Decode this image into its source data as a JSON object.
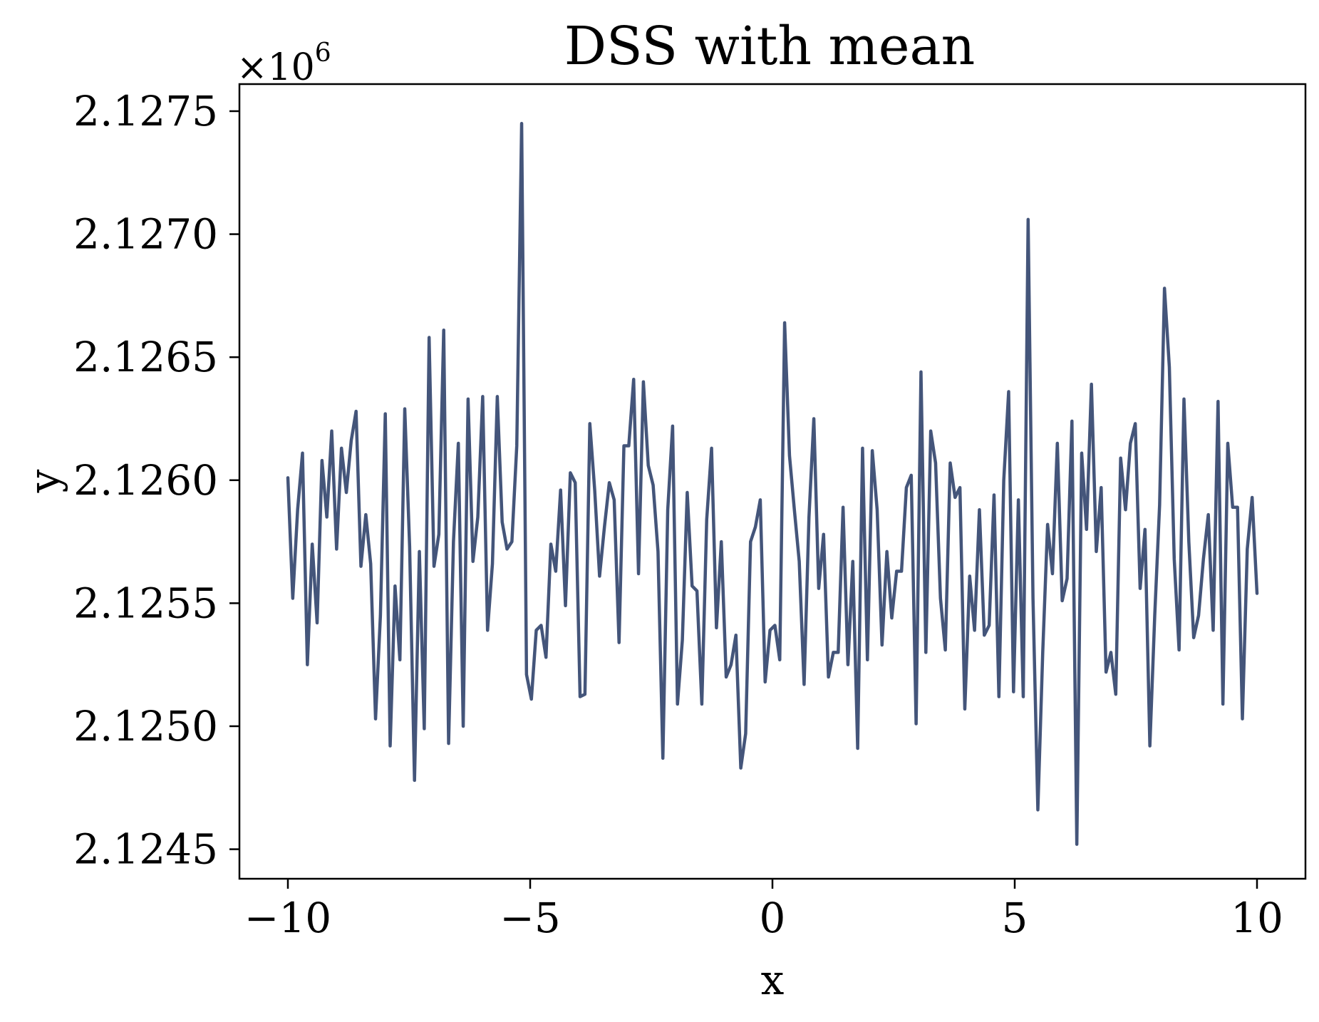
{
  "chart_data": {
    "type": "line",
    "title": "DSS with mean",
    "xlabel": "x",
    "ylabel": "y",
    "y_offset_text": "×10",
    "y_offset_exponent": "6",
    "xlim": [
      -11,
      11
    ],
    "ylim": [
      2.12438,
      2.12761
    ],
    "xticks": [
      -10,
      -5,
      0,
      5,
      10
    ],
    "xtick_labels": [
      "−10",
      "−5",
      "0",
      "5",
      "10"
    ],
    "yticks": [
      2.1245,
      2.125,
      2.1255,
      2.126,
      2.1265,
      2.127,
      2.1275
    ],
    "ytick_labels": [
      "2.1245",
      "2.1250",
      "2.1255",
      "2.1260",
      "2.1265",
      "2.1270",
      "2.1275"
    ],
    "grid": false,
    "series": [
      {
        "color": "#44557a",
        "x_range": [
          -10,
          10
        ],
        "values": [
          2.12601,
          2.12552,
          2.12588,
          2.12611,
          2.12525,
          2.12574,
          2.12542,
          2.12608,
          2.12585,
          2.1262,
          2.12572,
          2.12613,
          2.12595,
          2.12616,
          2.12628,
          2.12565,
          2.12586,
          2.12566,
          2.12503,
          2.12545,
          2.12627,
          2.12492,
          2.12557,
          2.12527,
          2.12629,
          2.12573,
          2.12478,
          2.12571,
          2.12499,
          2.12658,
          2.12565,
          2.12578,
          2.12661,
          2.12493,
          2.12575,
          2.12615,
          2.125,
          2.12633,
          2.12567,
          2.12585,
          2.12634,
          2.12539,
          2.12566,
          2.12634,
          2.12583,
          2.12572,
          2.12575,
          2.12614,
          2.12745,
          2.12521,
          2.12511,
          2.12539,
          2.12541,
          2.12528,
          2.12574,
          2.12563,
          2.12596,
          2.12549,
          2.12603,
          2.12599,
          2.12512,
          2.12513,
          2.12623,
          2.12596,
          2.12561,
          2.12581,
          2.12599,
          2.12592,
          2.12534,
          2.12614,
          2.12614,
          2.12641,
          2.12562,
          2.1264,
          2.12606,
          2.12598,
          2.12571,
          2.12487,
          2.12588,
          2.12622,
          2.12509,
          2.12535,
          2.12595,
          2.12557,
          2.12555,
          2.12509,
          2.12584,
          2.12613,
          2.1254,
          2.12575,
          2.1252,
          2.12525,
          2.12537,
          2.12483,
          2.12497,
          2.12575,
          2.12581,
          2.12592,
          2.12518,
          2.12539,
          2.12541,
          2.12527,
          2.12664,
          2.1261,
          2.12588,
          2.12567,
          2.12517,
          2.12585,
          2.12625,
          2.12556,
          2.12578,
          2.1252,
          2.1253,
          2.1253,
          2.12589,
          2.12525,
          2.12567,
          2.12491,
          2.12613,
          2.12527,
          2.12612,
          2.12588,
          2.12533,
          2.12571,
          2.12544,
          2.12563,
          2.12563,
          2.12597,
          2.12602,
          2.12501,
          2.12644,
          2.1253,
          2.1262,
          2.12607,
          2.12552,
          2.12531,
          2.12607,
          2.12593,
          2.12597,
          2.12507,
          2.12561,
          2.12539,
          2.12588,
          2.12537,
          2.12541,
          2.12594,
          2.12512,
          2.126,
          2.12636,
          2.12514,
          2.12592,
          2.12512,
          2.12706,
          2.12552,
          2.12466,
          2.1253,
          2.12582,
          2.12562,
          2.12615,
          2.12551,
          2.1256,
          2.12624,
          2.12452,
          2.12611,
          2.1258,
          2.12639,
          2.12571,
          2.12597,
          2.12522,
          2.1253,
          2.12513,
          2.12609,
          2.12588,
          2.12615,
          2.12623,
          2.12556,
          2.1258,
          2.12492,
          2.12545,
          2.1259,
          2.12678,
          2.12646,
          2.12568,
          2.12531,
          2.12633,
          2.12575,
          2.12536,
          2.12545,
          2.12568,
          2.12586,
          2.12539,
          2.12632,
          2.12509,
          2.12615,
          2.12589,
          2.12589,
          2.12503,
          2.12572,
          2.12593,
          2.12554
        ]
      }
    ]
  }
}
